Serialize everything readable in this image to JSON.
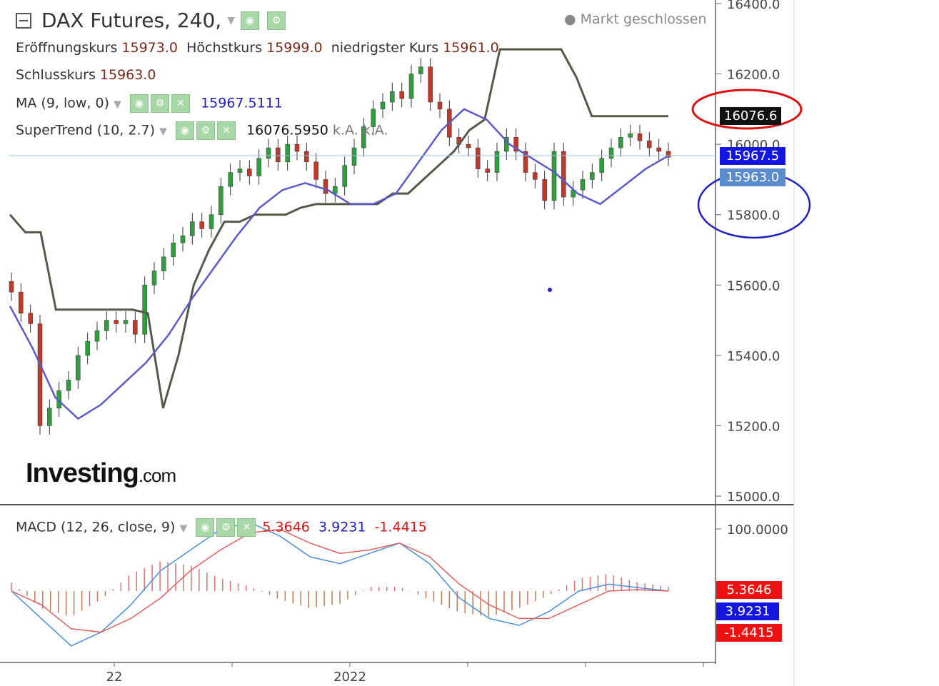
{
  "header": {
    "symbol": "DAX Futures, 240,",
    "status": "● Markt geschlossen"
  },
  "ohlc": {
    "open_label": "Eröffnungskurs",
    "open": "15973.0",
    "high_label": "Höchstkurs",
    "high": "15999.0",
    "low_label": "niedrigster Kurs",
    "low": "15961.0",
    "close_label": "Schlusskurs",
    "close": "15963.0"
  },
  "indicators": {
    "ma_label": "MA (9, low, 0)",
    "ma_value": "15967.5111",
    "st_label": "SuperTrend (10, 2.7)",
    "st_value": "16076.5950",
    "st_extra": "k.A.  k.A.",
    "macd_label": "MACD (12, 26, close, 9)",
    "macd_v1": "5.3646",
    "macd_v2": "3.9231",
    "macd_v3": "-1.4415"
  },
  "price_tags": {
    "supertrend": "16076.6",
    "ma": "15967.5",
    "close": "15963.0",
    "macd_hist": "5.3646",
    "macd_line": "3.9231",
    "macd_signal": "-1.4415"
  },
  "logo": {
    "main": "Investing",
    "suffix": ".com"
  },
  "colors": {
    "up": "#2e9e3e",
    "down": "#c0392b",
    "ma": "#5b5bc8",
    "supertrend": "#555a48",
    "macd_line": "#4a8fd8",
    "signal": "#e06060",
    "annot_red": "#e01010",
    "annot_blue": "#2020c0"
  },
  "chart_data": [
    {
      "type": "candlestick",
      "title": "DAX Futures, 240",
      "y_ticks": [
        "16400.0",
        "16200.0",
        "16000.0",
        "15800.0",
        "15600.0",
        "15400.0",
        "15200.0",
        "15000.0"
      ],
      "ylim": [
        15000,
        16400
      ],
      "x_ticks": [
        "22",
        "2022"
      ],
      "grid": false,
      "series_close": [
        15580,
        15520,
        15490,
        15200,
        15250,
        15300,
        15330,
        15400,
        15440,
        15470,
        15500,
        15490,
        15500,
        15460,
        15600,
        15640,
        15680,
        15720,
        15740,
        15780,
        15760,
        15800,
        15880,
        15920,
        15930,
        15910,
        15960,
        15990,
        15950,
        16000,
        15980,
        15950,
        15900,
        15860,
        15880,
        15940,
        15990,
        16050,
        16100,
        16120,
        16150,
        16130,
        16200,
        16220,
        16120,
        16100,
        16020,
        16000,
        15990,
        15930,
        15920,
        15980,
        16020,
        15980,
        15920,
        15900,
        15840,
        15980,
        15850,
        15870,
        15900,
        15920,
        15960,
        15990,
        16020,
        16030,
        16010,
        15990,
        15980,
        15963
      ],
      "supertrend": [
        15800,
        15750,
        15750,
        15530,
        15530,
        15530,
        15530,
        15530,
        15530,
        15520,
        15250,
        15400,
        15600,
        15700,
        15780,
        15780,
        15800,
        15800,
        15800,
        15820,
        15830,
        15830,
        15830,
        15830,
        15830,
        15860,
        15860,
        15900,
        15940,
        15980,
        16040,
        16070,
        16270,
        16270,
        16270,
        16270,
        16270,
        16190,
        16080,
        16080,
        16080,
        16080,
        16080,
        16080
      ],
      "ma": [
        15540,
        15420,
        15280,
        15220,
        15260,
        15320,
        15380,
        15460,
        15560,
        15650,
        15740,
        15820,
        15870,
        15890,
        15870,
        15830,
        15830,
        15860,
        15950,
        16040,
        16100,
        16070,
        16000,
        15960,
        15920,
        15860,
        15830,
        15880,
        15930,
        15967.5
      ]
    },
    {
      "type": "line",
      "title": "MACD (12, 26, close, 9)",
      "y_ticks": [
        "100.0000"
      ],
      "series": [
        {
          "name": "MACD",
          "values": [
            0,
            -40,
            -80,
            -60,
            -20,
            30,
            60,
            90,
            100,
            80,
            50,
            40,
            55,
            70,
            40,
            -10,
            -40,
            -50,
            -30,
            0,
            10,
            5,
            0
          ]
        },
        {
          "name": "Signal",
          "values": [
            0,
            -20,
            -55,
            -60,
            -40,
            -10,
            30,
            60,
            85,
            90,
            70,
            55,
            60,
            70,
            50,
            10,
            -20,
            -40,
            -40,
            -20,
            0,
            2,
            0
          ]
        },
        {
          "name": "Histogram",
          "values": [
            10,
            -20,
            -30,
            -10,
            20,
            35,
            30,
            15,
            5,
            -10,
            -20,
            -15,
            5,
            5,
            -10,
            -25,
            -30,
            -20,
            -5,
            15,
            20,
            10,
            5
          ]
        }
      ]
    }
  ]
}
